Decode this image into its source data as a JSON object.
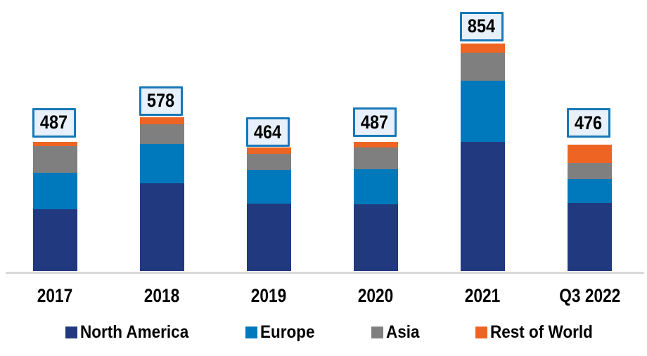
{
  "chart_data": {
    "type": "bar",
    "stacked": true,
    "title": "",
    "categories": [
      "2017",
      "2018",
      "2019",
      "2020",
      "2021",
      "Q3 2022"
    ],
    "series": [
      {
        "name": "North America",
        "color": "#21397E",
        "values": [
          233,
          331,
          254,
          252,
          487,
          258
        ]
      },
      {
        "name": "Europe",
        "color": "#0079BC",
        "values": [
          138,
          148,
          128,
          132,
          229,
          88
        ]
      },
      {
        "name": "Asia",
        "color": "#7F7F7F",
        "values": [
          99,
          73,
          60,
          82,
          104,
          61
        ]
      },
      {
        "name": "Rest of World",
        "color": "#EE6523",
        "values": [
          17,
          26,
          22,
          21,
          34,
          69
        ]
      }
    ],
    "totals": [
      487,
      578,
      464,
      487,
      854,
      476
    ],
    "total_label_box": {
      "fill": "#E8F1FB",
      "border_color": "#1878B8"
    },
    "value_axis_visible": false,
    "gridlines": false,
    "baseline_axis_color": "#D9D9D9",
    "legend_position": "bottom",
    "legend": [
      "North America",
      "Europe",
      "Asia",
      "Rest of World"
    ],
    "background_color": "#FFFFFF",
    "text_color": "#000000"
  }
}
